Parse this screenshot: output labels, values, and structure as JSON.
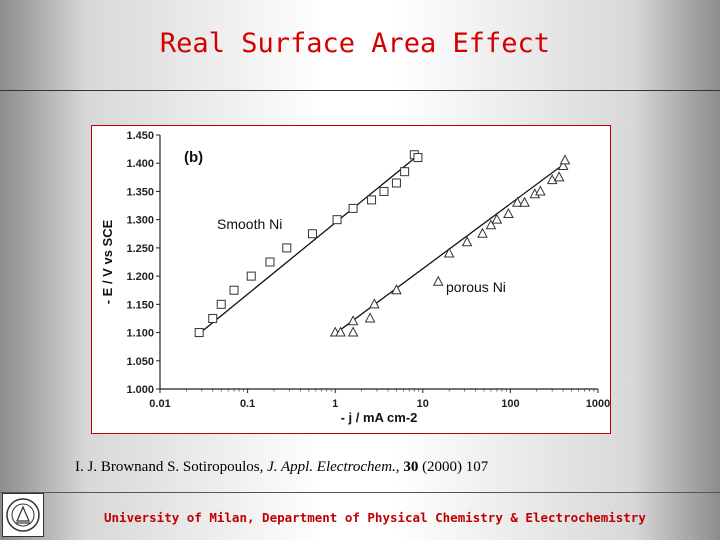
{
  "slide": {
    "title": "Real Surface Area Effect",
    "citation": {
      "authors": "I. J. Brownand S. Sotiropoulos,",
      "journal": "J. Appl. Electrochem.,",
      "volume": "30",
      "rest": "(2000) 107"
    },
    "footer": "University of Milan, Department of Physical Chemistry & Electrochemistry",
    "logo_icon": "university-seal-icon"
  },
  "chart_data": {
    "type": "scatter",
    "panel_label": "(b)",
    "xlabel": "- j / mA cm-2",
    "ylabel": "- E / V vs SCE",
    "x_scale": "log",
    "xlim": [
      0.01,
      1000
    ],
    "ylim": [
      1.0,
      1.45
    ],
    "x_ticks": [
      "0.01",
      "0.1",
      "1",
      "10",
      "100",
      "1000"
    ],
    "y_ticks": [
      "1.000",
      "1.050",
      "1.100",
      "1.150",
      "1.200",
      "1.250",
      "1.300",
      "1.350",
      "1.400",
      "1.450"
    ],
    "grid": false,
    "series": [
      {
        "label": "Smooth Ni",
        "marker": "square",
        "points": [
          [
            0.028,
            1.1
          ],
          [
            0.04,
            1.125
          ],
          [
            0.05,
            1.15
          ],
          [
            0.07,
            1.175
          ],
          [
            0.11,
            1.2
          ],
          [
            0.18,
            1.225
          ],
          [
            0.28,
            1.25
          ],
          [
            0.55,
            1.275
          ],
          [
            1.05,
            1.3
          ],
          [
            1.6,
            1.32
          ],
          [
            2.6,
            1.335
          ],
          [
            3.6,
            1.35
          ],
          [
            5.0,
            1.365
          ],
          [
            6.2,
            1.385
          ],
          [
            8.0,
            1.415
          ],
          [
            8.8,
            1.41
          ]
        ],
        "fit_line": [
          [
            0.028,
            1.098
          ],
          [
            8.5,
            1.412
          ]
        ]
      },
      {
        "label": "porous Ni",
        "marker": "triangle",
        "points": [
          [
            1.0,
            1.1
          ],
          [
            1.15,
            1.1
          ],
          [
            1.6,
            1.1
          ],
          [
            1.6,
            1.12
          ],
          [
            2.5,
            1.125
          ],
          [
            2.8,
            1.15
          ],
          [
            5.0,
            1.175
          ],
          [
            15.0,
            1.19
          ],
          [
            20.0,
            1.24
          ],
          [
            32.0,
            1.26
          ],
          [
            48.0,
            1.275
          ],
          [
            60.0,
            1.29
          ],
          [
            70.0,
            1.3
          ],
          [
            95.0,
            1.31
          ],
          [
            120.0,
            1.33
          ],
          [
            145.0,
            1.33
          ],
          [
            190.0,
            1.345
          ],
          [
            220.0,
            1.35
          ],
          [
            300.0,
            1.37
          ],
          [
            360.0,
            1.375
          ],
          [
            400.0,
            1.395
          ],
          [
            420.0,
            1.405
          ]
        ],
        "fit_line": [
          [
            1.0,
            1.098
          ],
          [
            420.0,
            1.4
          ]
        ]
      }
    ]
  }
}
